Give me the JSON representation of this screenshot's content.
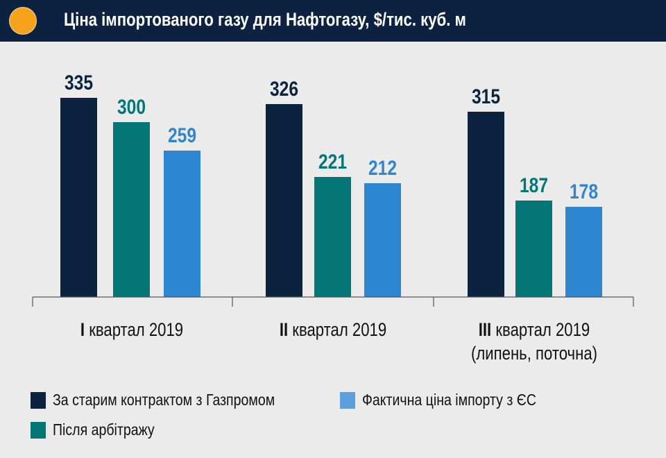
{
  "title": "Ціна імпортованого газу для Нафтогазу, $/тис. куб. м",
  "colors": {
    "header": "#0d2240",
    "dot": "#f7a21b"
  },
  "chart_data": {
    "type": "bar",
    "title": "Ціна імпортованого газу для Нафтогазу, $/тис. куб. м",
    "categories": [
      {
        "roman": "I",
        "text": "квартал 2019",
        "note": ""
      },
      {
        "roman": "II",
        "text": "квартал 2019",
        "note": ""
      },
      {
        "roman": "III",
        "text": "квартал 2019",
        "note": "(липень, поточна)"
      }
    ],
    "series": [
      {
        "name": "За старим контрактом з Газпромом",
        "color": "#0c2340",
        "values": [
          335,
          326,
          315
        ]
      },
      {
        "name": "Після арбітражу",
        "color": "#047676",
        "values": [
          300,
          221,
          187
        ]
      },
      {
        "name": "Фактична ціна імпорту з ЄС",
        "color": "#2f86d0",
        "values": [
          259,
          212,
          178
        ]
      }
    ],
    "ylim": [
      48,
      400
    ],
    "grid": false,
    "legend_position": "bottom"
  }
}
